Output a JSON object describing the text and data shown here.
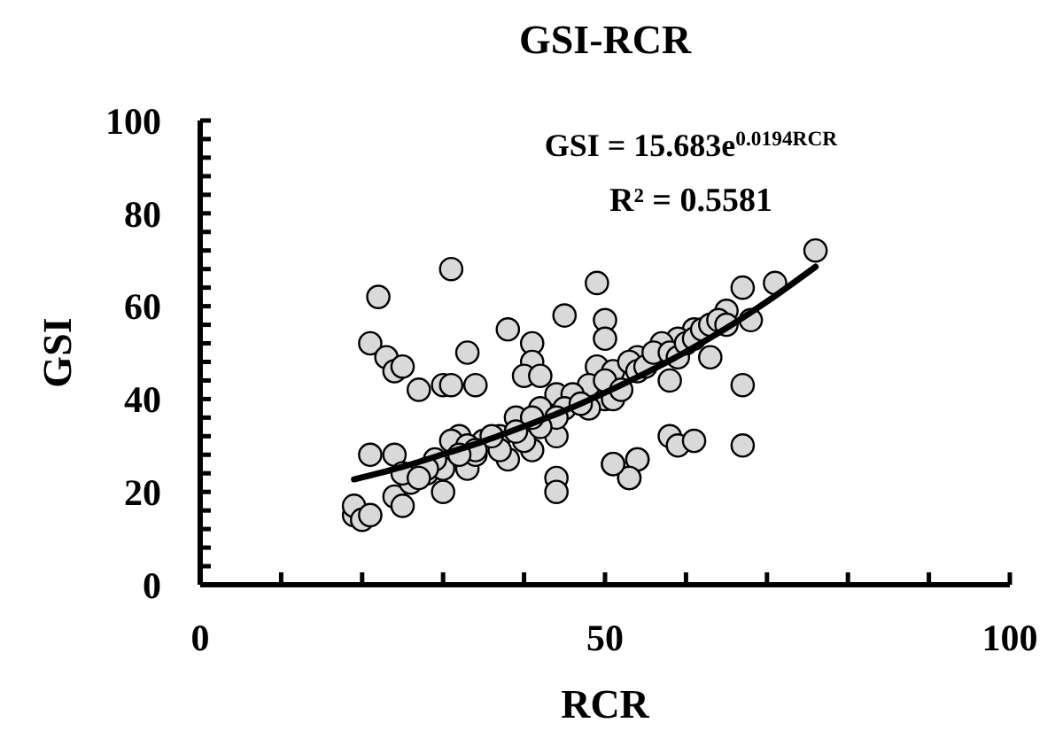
{
  "chart_data": {
    "type": "scatter",
    "title": "GSI-RCR",
    "xlabel": "RCR",
    "ylabel": "GSI",
    "xlim": [
      0,
      100
    ],
    "ylim": [
      0,
      100
    ],
    "xticks": [
      0,
      {
        "value": 10,
        "label": null
      },
      {
        "value": 20,
        "label": null
      },
      {
        "value": 30,
        "label": null
      },
      {
        "value": 40,
        "label": null
      },
      50,
      {
        "value": 60,
        "label": null
      },
      {
        "value": 70,
        "label": null
      },
      {
        "value": 80,
        "label": null
      },
      {
        "value": 90,
        "label": null
      },
      100
    ],
    "yticks": [
      0,
      {
        "value": 4,
        "label": null
      },
      {
        "value": 8,
        "label": null
      },
      {
        "value": 12,
        "label": null
      },
      {
        "value": 16,
        "label": null
      },
      20,
      {
        "value": 24,
        "label": null
      },
      {
        "value": 28,
        "label": null
      },
      {
        "value": 32,
        "label": null
      },
      {
        "value": 36,
        "label": null
      },
      40,
      {
        "value": 44,
        "label": null
      },
      {
        "value": 48,
        "label": null
      },
      {
        "value": 52,
        "label": null
      },
      {
        "value": 56,
        "label": null
      },
      60,
      {
        "value": 64,
        "label": null
      },
      {
        "value": 68,
        "label": null
      },
      {
        "value": 72,
        "label": null
      },
      {
        "value": 76,
        "label": null
      },
      80,
      {
        "value": 84,
        "label": null
      },
      {
        "value": 88,
        "label": null
      },
      {
        "value": 92,
        "label": null
      },
      {
        "value": 96,
        "label": null
      },
      100
    ],
    "grid": false,
    "marker": "circle",
    "annotations": [
      "GSI = 15.683e$^{0.0194RCR}$",
      "R² = 0.5581"
    ],
    "series": [
      {
        "type": "scatter",
        "color": "#d9d9d9",
        "x": [
          31,
          22,
          21,
          23,
          24,
          25,
          27,
          30,
          31,
          34,
          33,
          38,
          41,
          41,
          40,
          42,
          45,
          49,
          50,
          50,
          21,
          24,
          24,
          25,
          19,
          19,
          20,
          21,
          28,
          44,
          44,
          51,
          53,
          54,
          76,
          71,
          67,
          68,
          65,
          67,
          67,
          58,
          59,
          61,
          54,
          53,
          51,
          63,
          58,
          61,
          59,
          57,
          54,
          50,
          32,
          30,
          35,
          37,
          38,
          41,
          44,
          44,
          49,
          51,
          51,
          53,
          48,
          31,
          30,
          33,
          34,
          37,
          39,
          42,
          40,
          26,
          25,
          29,
          48,
          50,
          52,
          54,
          55,
          56,
          58,
          59,
          60,
          61,
          62,
          63,
          64,
          65,
          46,
          45,
          44,
          47,
          42,
          41,
          39,
          36,
          33,
          34,
          32,
          28,
          27
        ],
        "values": [
          68,
          62,
          52,
          49,
          46,
          47,
          42,
          43,
          43,
          43,
          50,
          55,
          52,
          48,
          45,
          45,
          58,
          65,
          57,
          53,
          28,
          28,
          19,
          17,
          15,
          17,
          14,
          15,
          24,
          23,
          20,
          26,
          23,
          27,
          72,
          65,
          64,
          57,
          59,
          43,
          30,
          32,
          30,
          31,
          27,
          23,
          26,
          49,
          44,
          55,
          53,
          52,
          49,
          40,
          32,
          20,
          31,
          32,
          27,
          29,
          32,
          41,
          47,
          40,
          46,
          48,
          38,
          31,
          25,
          25,
          28,
          29,
          36,
          38,
          31,
          22,
          24,
          27,
          43,
          44,
          42,
          46,
          47,
          50,
          50,
          49,
          52,
          53,
          55,
          56,
          57,
          56,
          41,
          38,
          36,
          39,
          34,
          36,
          33,
          32,
          30,
          29,
          28,
          25,
          23
        ]
      },
      {
        "type": "line",
        "color": "#000000",
        "marker": "none",
        "x": [
          19,
          25,
          30,
          35,
          40,
          45,
          50,
          55,
          60,
          65,
          70,
          76
        ],
        "values": [
          22.7,
          25.4,
          28.1,
          30.9,
          34.1,
          37.5,
          41.4,
          45.6,
          50.2,
          55.3,
          61,
          68.5
        ]
      }
    ]
  }
}
